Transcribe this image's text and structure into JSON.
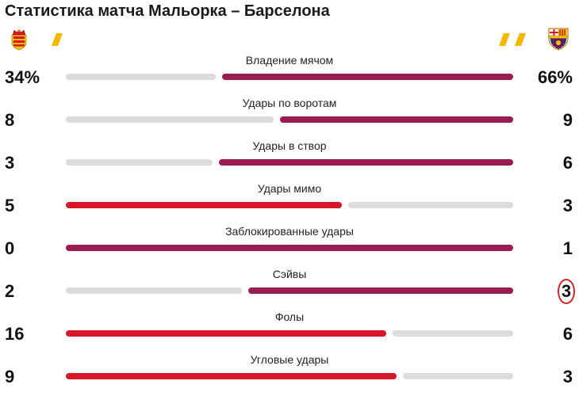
{
  "title": "Статистика матча Мальорка – Барселона",
  "teams": {
    "home": {
      "crest": "mallorca-crest-icon"
    },
    "away": {
      "crest": "barcelona-crest-icon"
    }
  },
  "colors": {
    "home_leading": "#d7162a",
    "away_leading": "#9a1b4f",
    "inactive": "#dcdcdc",
    "accent": "#f5b800",
    "highlight_circle": "#e0202a"
  },
  "stats": [
    {
      "label": "Владение мячом",
      "home": "34%",
      "away": "66%",
      "home_n": 34,
      "away_n": 66,
      "leader": "away"
    },
    {
      "label": "Удары по воротам",
      "home": "8",
      "away": "9",
      "home_n": 8,
      "away_n": 9,
      "leader": "away"
    },
    {
      "label": "Удары в створ",
      "home": "3",
      "away": "6",
      "home_n": 3,
      "away_n": 6,
      "leader": "away"
    },
    {
      "label": "Удары мимо",
      "home": "5",
      "away": "3",
      "home_n": 5,
      "away_n": 3,
      "leader": "home"
    },
    {
      "label": "Заблокированные удары",
      "home": "0",
      "away": "1",
      "home_n": 0,
      "away_n": 1,
      "leader": "away"
    },
    {
      "label": "Сэйвы",
      "home": "2",
      "away": "3",
      "home_n": 2,
      "away_n": 3,
      "leader": "away",
      "away_circled": true
    },
    {
      "label": "Фолы",
      "home": "16",
      "away": "6",
      "home_n": 16,
      "away_n": 6,
      "leader": "home"
    },
    {
      "label": "Угловые удары",
      "home": "9",
      "away": "3",
      "home_n": 9,
      "away_n": 3,
      "leader": "home"
    }
  ]
}
